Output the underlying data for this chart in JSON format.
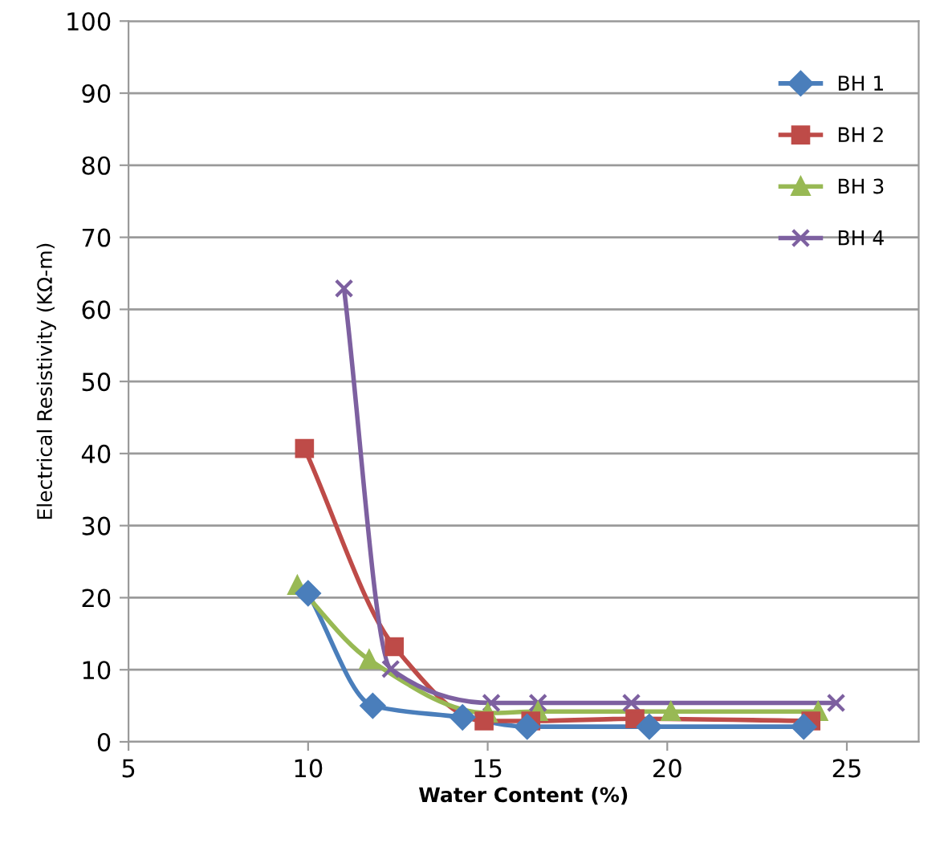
{
  "chart_data": {
    "type": "line",
    "xlabel": "Water Content (%)",
    "ylabel": "Electrical Resistivity (KΩ-m)",
    "xlim": [
      5,
      27
    ],
    "xticks": [
      5,
      10,
      15,
      20,
      25
    ],
    "ylim": [
      0,
      100
    ],
    "yticks": [
      0,
      10,
      20,
      30,
      40,
      50,
      60,
      70,
      80,
      90,
      100
    ],
    "grid": "y",
    "legend": "top right",
    "line_style": "solid",
    "series": [
      {
        "name": "BH 1",
        "color": "#4a7ebb",
        "marker": "diamond",
        "x": [
          10.0,
          11.8,
          14.3,
          16.1,
          19.5,
          23.8
        ],
        "values": [
          20.6,
          5.0,
          3.4,
          2.1,
          2.1,
          2.1
        ]
      },
      {
        "name": "BH 2",
        "color": "#be4b48",
        "marker": "square",
        "x": [
          9.9,
          12.4,
          14.9,
          16.2,
          19.1,
          24.0
        ],
        "values": [
          40.7,
          13.2,
          2.9,
          2.9,
          3.2,
          2.9
        ]
      },
      {
        "name": "BH 3",
        "color": "#98b954",
        "marker": "triangle",
        "x": [
          9.7,
          11.7,
          15.0,
          16.4,
          20.1,
          24.2
        ],
        "values": [
          21.7,
          11.4,
          4.0,
          4.2,
          4.2,
          4.2
        ]
      },
      {
        "name": "BH 4",
        "color": "#7d60a0",
        "marker": "cross",
        "x": [
          11.0,
          12.3,
          15.1,
          16.4,
          19.0,
          24.7
        ],
        "values": [
          62.9,
          10.1,
          5.4,
          5.4,
          5.4,
          5.4
        ]
      }
    ]
  }
}
